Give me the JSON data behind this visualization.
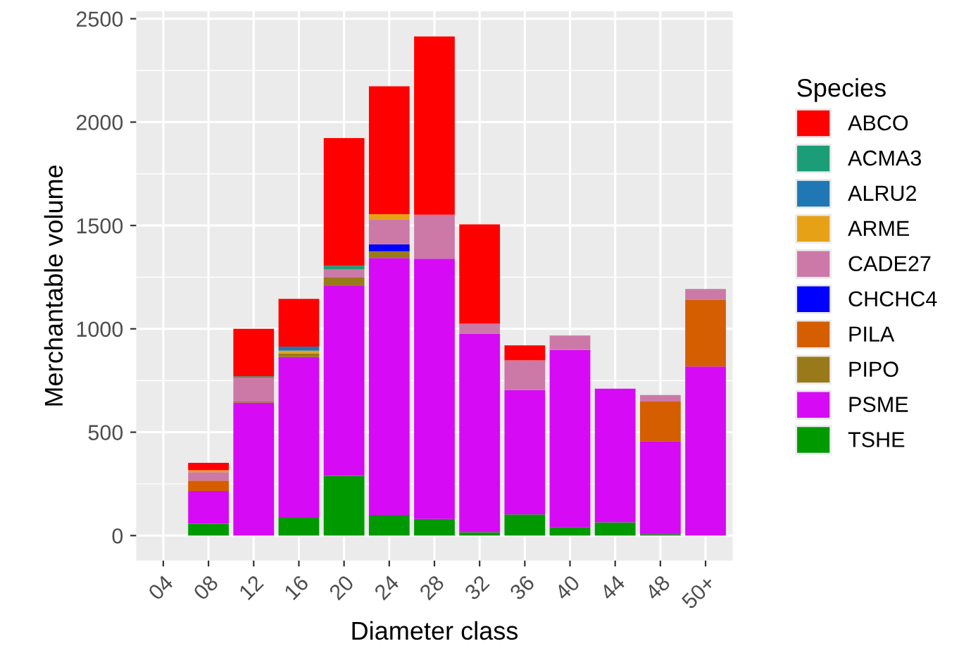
{
  "chart_data": {
    "type": "bar",
    "stacked": true,
    "xlabel": "Diameter class",
    "ylabel": "Merchantable volume",
    "legend_title": "Species",
    "legend": "right",
    "grid": true,
    "categories": [
      "04",
      "08",
      "12",
      "16",
      "20",
      "24",
      "28",
      "32",
      "36",
      "40",
      "44",
      "48",
      "50+"
    ],
    "ylim": [
      -121,
      2536
    ],
    "yticks": [
      0,
      500,
      1000,
      1500,
      2000,
      2500
    ],
    "series": [
      {
        "name": "TSHE",
        "color": "#009900",
        "values": [
          null,
          57,
          null,
          86,
          289,
          100,
          80,
          16,
          102,
          41,
          64,
          7,
          null
        ]
      },
      {
        "name": "PSME",
        "color": "#d60af5",
        "values": [
          null,
          159,
          643,
          778,
          918,
          1243,
          1259,
          961,
          603,
          857,
          647,
          450,
          818
        ]
      },
      {
        "name": "PIPO",
        "color": "#997a1a",
        "values": [
          null,
          null,
          5,
          18,
          41,
          32,
          null,
          null,
          null,
          null,
          null,
          null,
          null
        ]
      },
      {
        "name": "PILA",
        "color": "#d55e00",
        "values": [
          null,
          50,
          null,
          null,
          null,
          null,
          null,
          null,
          null,
          null,
          null,
          191,
          321
        ]
      },
      {
        "name": "CHCHC4",
        "color": "#0000ff",
        "values": [
          null,
          null,
          null,
          null,
          null,
          34,
          null,
          null,
          null,
          null,
          null,
          null,
          null
        ]
      },
      {
        "name": "CADE27",
        "color": "#cc79a7",
        "values": [
          null,
          41,
          116,
          null,
          41,
          121,
          213,
          48,
          143,
          70,
          null,
          32,
          54
        ]
      },
      {
        "name": "ARME",
        "color": "#e6a117",
        "values": [
          null,
          9,
          null,
          13,
          null,
          25,
          null,
          null,
          null,
          null,
          null,
          null,
          null
        ]
      },
      {
        "name": "ALRU2",
        "color": "#1f78b4",
        "values": [
          null,
          null,
          null,
          19,
          null,
          null,
          null,
          null,
          null,
          null,
          null,
          null,
          null
        ]
      },
      {
        "name": "ACMA3",
        "color": "#1b9e77",
        "values": [
          null,
          null,
          6,
          null,
          16,
          null,
          null,
          null,
          null,
          null,
          null,
          null,
          null
        ]
      },
      {
        "name": "ABCO",
        "color": "#ff0000",
        "values": [
          null,
          36,
          230,
          231,
          618,
          618,
          862,
          480,
          72,
          null,
          null,
          null,
          null
        ]
      }
    ]
  }
}
